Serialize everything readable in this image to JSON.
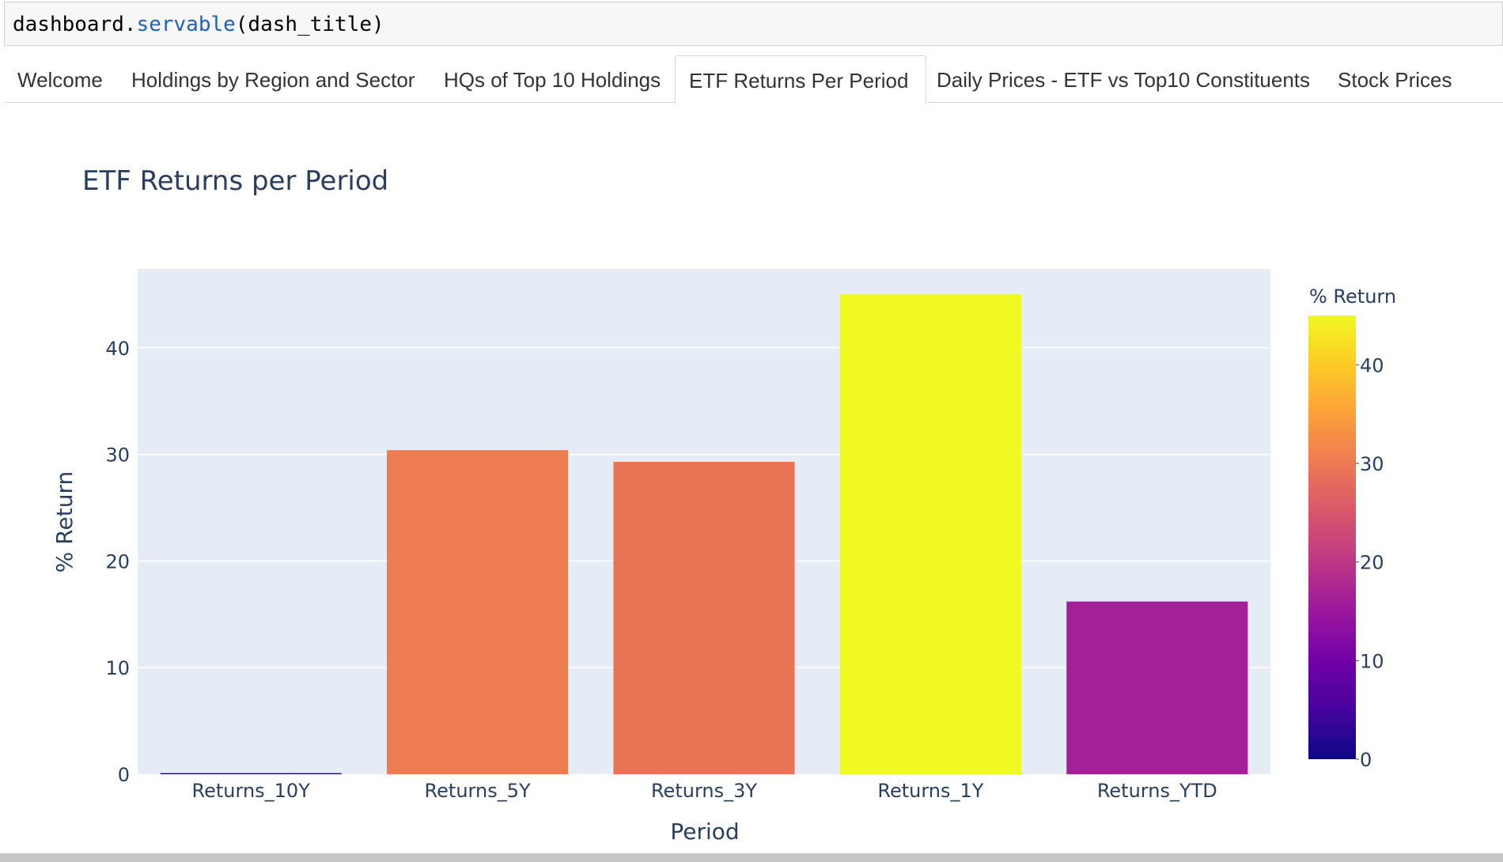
{
  "code_cell": {
    "object": "dashboard",
    "dot": ".",
    "method": "servable",
    "args": "(dash_title)"
  },
  "tabs": [
    {
      "label": "Welcome",
      "active": false
    },
    {
      "label": "Holdings by Region and Sector",
      "active": false
    },
    {
      "label": "HQs of Top 10 Holdings",
      "active": false
    },
    {
      "label": "ETF Returns Per Period",
      "active": true
    },
    {
      "label": "Daily Prices - ETF vs Top10 Constituents",
      "active": false
    },
    {
      "label": "Stock Prices",
      "active": false
    }
  ],
  "colors": {
    "plot_bg": "#e5ecf6",
    "gridline": "#ffffff",
    "text": "#2a3f5f",
    "colorscale_plasma": [
      "#0d0887",
      "#46039f",
      "#7201a8",
      "#9c179e",
      "#bd3786",
      "#d8576b",
      "#ed7953",
      "#fb9f3a",
      "#fdca26",
      "#f0f921"
    ]
  },
  "chart_data": {
    "type": "bar",
    "title": "ETF Returns per Period",
    "xlabel": "Period",
    "ylabel": "% Return",
    "categories": [
      "Returns_10Y",
      "Returns_5Y",
      "Returns_3Y",
      "Returns_1Y",
      "Returns_YTD"
    ],
    "values": [
      0.1,
      30.4,
      29.3,
      45.0,
      16.2
    ],
    "ylim": [
      0,
      47.4
    ],
    "yticks": [
      0,
      10,
      20,
      30,
      40
    ],
    "grid": true,
    "colorbar": {
      "title": "% Return",
      "range": [
        0,
        45
      ],
      "ticks": [
        0,
        10,
        20,
        30,
        40
      ]
    }
  }
}
